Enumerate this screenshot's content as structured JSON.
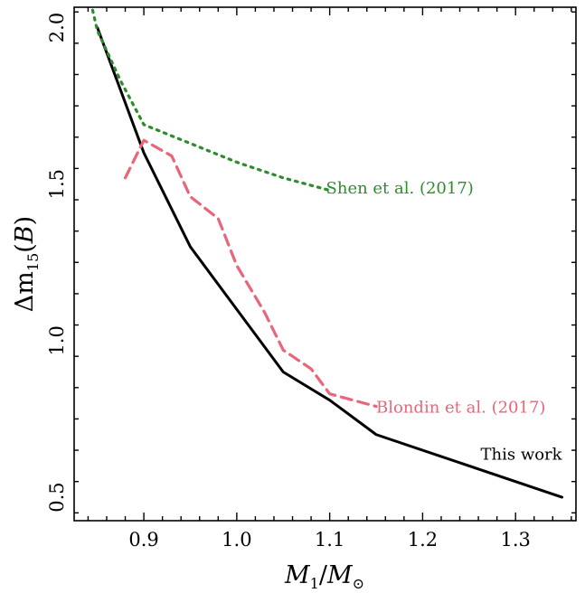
{
  "chart_data": {
    "type": "line",
    "xlabel": "M1/M⊙",
    "ylabel": "Δm15(B)",
    "xlim": [
      0.825,
      1.365
    ],
    "ylim": [
      0.425,
      2.065
    ],
    "xticks": [
      0.9,
      1.0,
      1.1,
      1.2,
      1.3
    ],
    "yticks": [
      0.5,
      1.0,
      1.5,
      2.0
    ],
    "grid": false,
    "legend": "none",
    "series": [
      {
        "name": "This work",
        "color": "#000000",
        "linestyle": "solid",
        "x": [
          0.85,
          0.9,
          0.95,
          1.0,
          1.05,
          1.1,
          1.15,
          1.35
        ],
        "y": [
          2.0,
          1.6,
          1.3,
          1.1,
          0.9,
          0.81,
          0.7,
          0.5
        ]
      },
      {
        "name": "Blondin et al. (2017)",
        "color": "#e8657a",
        "linestyle": "dashed",
        "x": [
          0.88,
          0.9,
          0.93,
          0.95,
          0.98,
          1.0,
          1.03,
          1.05,
          1.08,
          1.1,
          1.15
        ],
        "y": [
          1.52,
          1.64,
          1.59,
          1.46,
          1.39,
          1.24,
          1.09,
          0.97,
          0.91,
          0.83,
          0.79
        ]
      },
      {
        "name": "Shen et al. (2017)",
        "color": "#2e8b2e",
        "linestyle": "dotted",
        "x": [
          0.843,
          0.85,
          0.875,
          0.9,
          0.95,
          1.0,
          1.05,
          1.1
        ],
        "y": [
          2.08,
          1.99,
          1.83,
          1.69,
          1.63,
          1.57,
          1.52,
          1.48
        ]
      }
    ],
    "annotations": [
      {
        "text": "Shen et al. (2017)",
        "x": 1.096,
        "y": 1.485,
        "color": "#2e8b2e"
      },
      {
        "text": "Blondin et al. (2017)",
        "x": 1.15,
        "y": 0.785,
        "color": "#e8657a"
      },
      {
        "text": "This work",
        "x": 1.35,
        "y": 0.635,
        "color": "#000000",
        "anchor": "end"
      }
    ]
  }
}
